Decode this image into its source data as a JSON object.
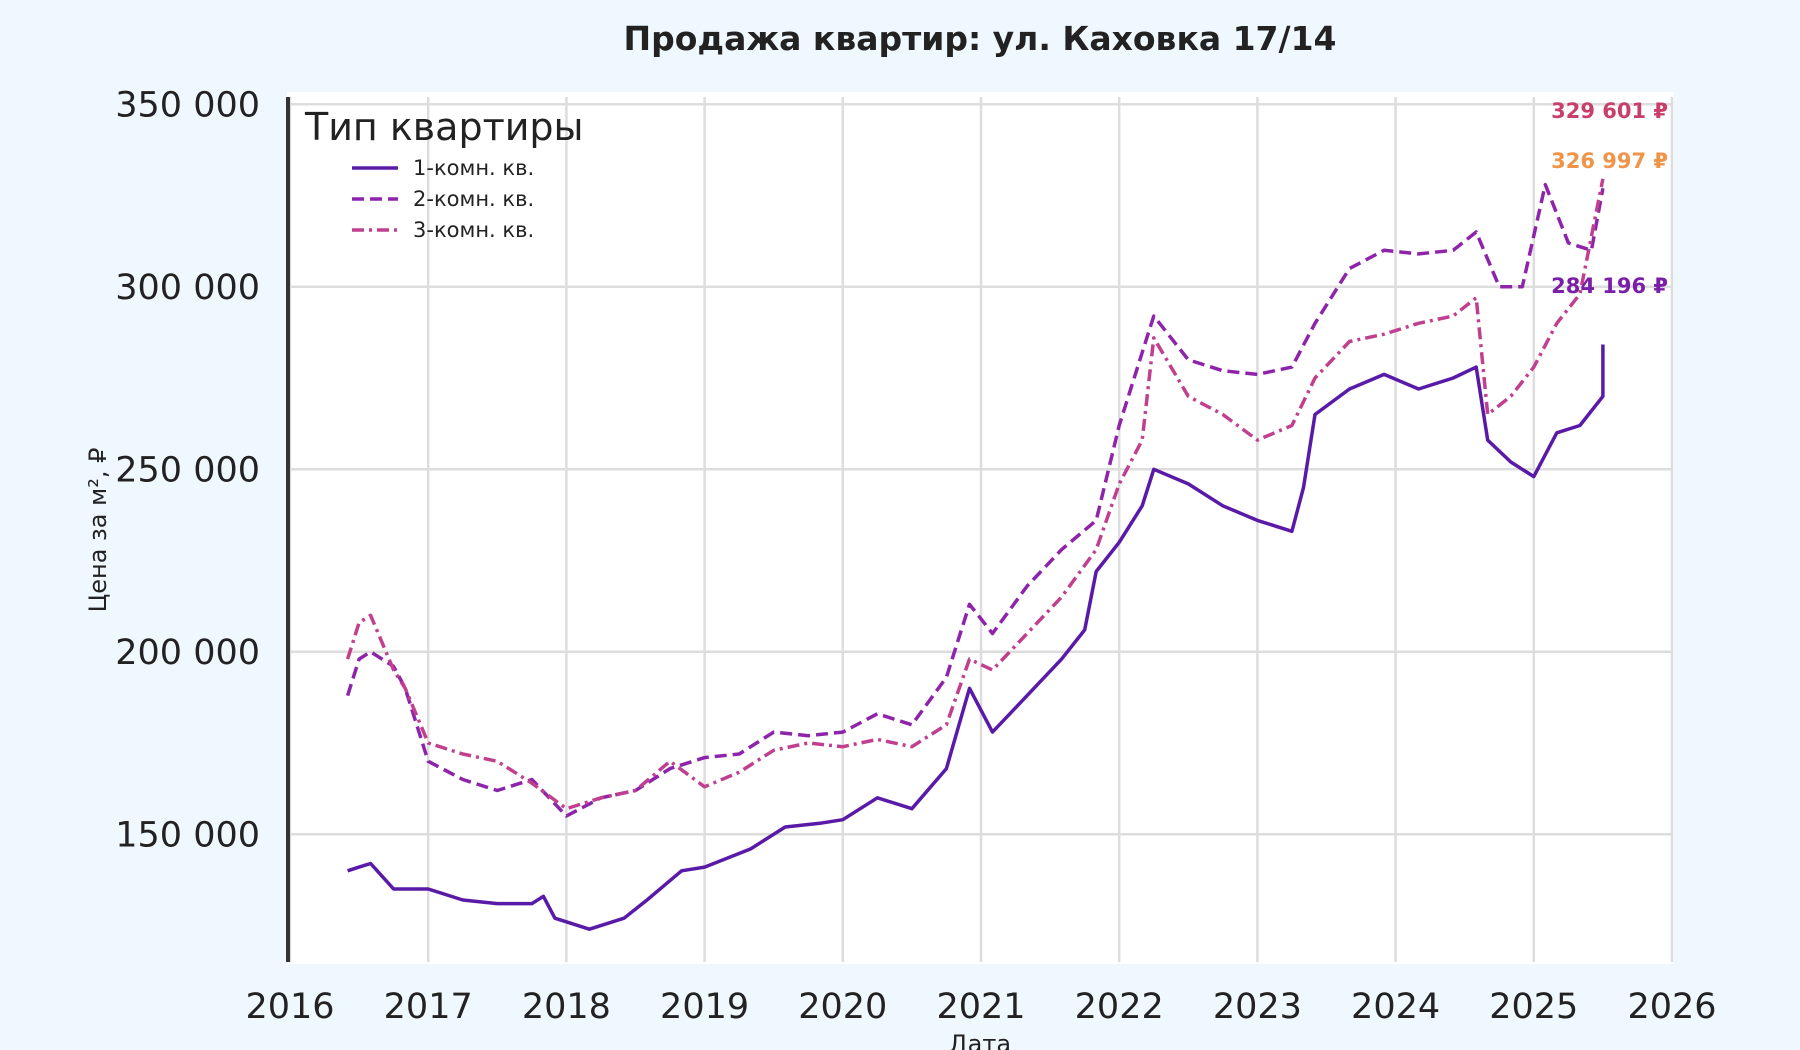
{
  "chart_data": {
    "type": "line",
    "title": "Продажа квартир: ул. Каховка 17/14",
    "xlabel": "Дата",
    "ylabel": "Цена за м², ₽",
    "xlim": [
      2016,
      2026
    ],
    "ylim": [
      115000,
      352000
    ],
    "x_ticks": [
      "2016",
      "2017",
      "2018",
      "2019",
      "2020",
      "2021",
      "2022",
      "2023",
      "2024",
      "2025",
      "2026"
    ],
    "y_ticks": [
      "150 000",
      "200 000",
      "250 000",
      "300 000",
      "350 000"
    ],
    "grid": true,
    "legend": {
      "title": "Тип квартиры",
      "position": "top-left"
    },
    "series": [
      {
        "name": "1-комн. кв.",
        "color": "#5a1aa8",
        "dash": "solid",
        "end_label": "284 196 ₽",
        "points": [
          [
            "2016-06",
            140000
          ],
          [
            "2016-07",
            141000
          ],
          [
            "2016-08",
            142000
          ],
          [
            "2016-10",
            135000
          ],
          [
            "2017-01",
            135000
          ],
          [
            "2017-04",
            132000
          ],
          [
            "2017-07",
            131000
          ],
          [
            "2017-10",
            131000
          ],
          [
            "2017-11",
            133000
          ],
          [
            "2017-12",
            127000
          ],
          [
            "2018-03",
            124000
          ],
          [
            "2018-06",
            127000
          ],
          [
            "2018-08",
            132000
          ],
          [
            "2018-11",
            140000
          ],
          [
            "2019-01",
            141000
          ],
          [
            "2019-05",
            146000
          ],
          [
            "2019-08",
            152000
          ],
          [
            "2019-11",
            153000
          ],
          [
            "2020-01",
            154000
          ],
          [
            "2020-04",
            160000
          ],
          [
            "2020-07",
            157000
          ],
          [
            "2020-10",
            168000
          ],
          [
            "2020-12",
            190000
          ],
          [
            "2021-02",
            178000
          ],
          [
            "2021-05",
            188000
          ],
          [
            "2021-08",
            198000
          ],
          [
            "2021-10",
            206000
          ],
          [
            "2021-11",
            222000
          ],
          [
            "2022-01",
            230000
          ],
          [
            "2022-03",
            240000
          ],
          [
            "2022-04",
            250000
          ],
          [
            "2022-07",
            246000
          ],
          [
            "2022-10",
            240000
          ],
          [
            "2023-01",
            236000
          ],
          [
            "2023-04",
            233000
          ],
          [
            "2023-05",
            245000
          ],
          [
            "2023-06",
            265000
          ],
          [
            "2023-09",
            272000
          ],
          [
            "2023-12",
            276000
          ],
          [
            "2024-03",
            272000
          ],
          [
            "2024-06",
            275000
          ],
          [
            "2024-08",
            278000
          ],
          [
            "2024-09",
            258000
          ],
          [
            "2024-11",
            252000
          ],
          [
            "2025-01",
            248000
          ],
          [
            "2025-03",
            260000
          ],
          [
            "2025-05",
            262000
          ],
          [
            "2025-07",
            270000
          ],
          [
            "2025-07",
            284196
          ]
        ]
      },
      {
        "name": "2-комн. кв.",
        "color": "#8e24aa",
        "dash": "dashed",
        "end_label": "326 997 ₽",
        "points": [
          [
            "2016-06",
            188000
          ],
          [
            "2016-07",
            198000
          ],
          [
            "2016-08",
            200000
          ],
          [
            "2016-10",
            196000
          ],
          [
            "2016-11",
            190000
          ],
          [
            "2017-01",
            170000
          ],
          [
            "2017-04",
            165000
          ],
          [
            "2017-07",
            162000
          ],
          [
            "2017-10",
            165000
          ],
          [
            "2018-01",
            155000
          ],
          [
            "2018-04",
            160000
          ],
          [
            "2018-07",
            162000
          ],
          [
            "2018-10",
            168000
          ],
          [
            "2019-01",
            171000
          ],
          [
            "2019-04",
            172000
          ],
          [
            "2019-07",
            178000
          ],
          [
            "2019-10",
            177000
          ],
          [
            "2020-01",
            178000
          ],
          [
            "2020-04",
            183000
          ],
          [
            "2020-07",
            180000
          ],
          [
            "2020-10",
            193000
          ],
          [
            "2020-12",
            213000
          ],
          [
            "2021-02",
            205000
          ],
          [
            "2021-05",
            218000
          ],
          [
            "2021-08",
            228000
          ],
          [
            "2021-11",
            236000
          ],
          [
            "2022-01",
            262000
          ],
          [
            "2022-03",
            282000
          ],
          [
            "2022-04",
            292000
          ],
          [
            "2022-07",
            280000
          ],
          [
            "2022-10",
            277000
          ],
          [
            "2023-01",
            276000
          ],
          [
            "2023-04",
            278000
          ],
          [
            "2023-06",
            290000
          ],
          [
            "2023-09",
            305000
          ],
          [
            "2023-12",
            310000
          ],
          [
            "2024-03",
            309000
          ],
          [
            "2024-06",
            310000
          ],
          [
            "2024-08",
            315000
          ],
          [
            "2024-10",
            300000
          ],
          [
            "2024-12",
            300000
          ],
          [
            "2025-02",
            328000
          ],
          [
            "2025-04",
            312000
          ],
          [
            "2025-06",
            310000
          ],
          [
            "2025-07",
            326997
          ]
        ]
      },
      {
        "name": "3-комн. кв.",
        "color": "#c0408f",
        "dash": "dashdot",
        "end_label": "329 601 ₽",
        "points": [
          [
            "2016-06",
            198000
          ],
          [
            "2016-07",
            208000
          ],
          [
            "2016-08",
            210000
          ],
          [
            "2016-10",
            195000
          ],
          [
            "2016-11",
            190000
          ],
          [
            "2017-01",
            175000
          ],
          [
            "2017-04",
            172000
          ],
          [
            "2017-07",
            170000
          ],
          [
            "2017-10",
            164000
          ],
          [
            "2018-01",
            157000
          ],
          [
            "2018-04",
            160000
          ],
          [
            "2018-07",
            162000
          ],
          [
            "2018-10",
            170000
          ],
          [
            "2019-01",
            163000
          ],
          [
            "2019-04",
            167000
          ],
          [
            "2019-07",
            173000
          ],
          [
            "2019-10",
            175000
          ],
          [
            "2020-01",
            174000
          ],
          [
            "2020-04",
            176000
          ],
          [
            "2020-07",
            174000
          ],
          [
            "2020-10",
            180000
          ],
          [
            "2020-12",
            198000
          ],
          [
            "2021-02",
            195000
          ],
          [
            "2021-05",
            205000
          ],
          [
            "2021-08",
            215000
          ],
          [
            "2021-11",
            228000
          ],
          [
            "2022-01",
            246000
          ],
          [
            "2022-03",
            258000
          ],
          [
            "2022-04",
            286000
          ],
          [
            "2022-07",
            270000
          ],
          [
            "2022-10",
            265000
          ],
          [
            "2023-01",
            258000
          ],
          [
            "2023-04",
            262000
          ],
          [
            "2023-06",
            275000
          ],
          [
            "2023-09",
            285000
          ],
          [
            "2023-12",
            287000
          ],
          [
            "2024-03",
            290000
          ],
          [
            "2024-06",
            292000
          ],
          [
            "2024-08",
            297000
          ],
          [
            "2024-09",
            265000
          ],
          [
            "2024-11",
            270000
          ],
          [
            "2025-01",
            278000
          ],
          [
            "2025-03",
            290000
          ],
          [
            "2025-05",
            298000
          ],
          [
            "2025-07",
            329601
          ]
        ]
      }
    ]
  }
}
